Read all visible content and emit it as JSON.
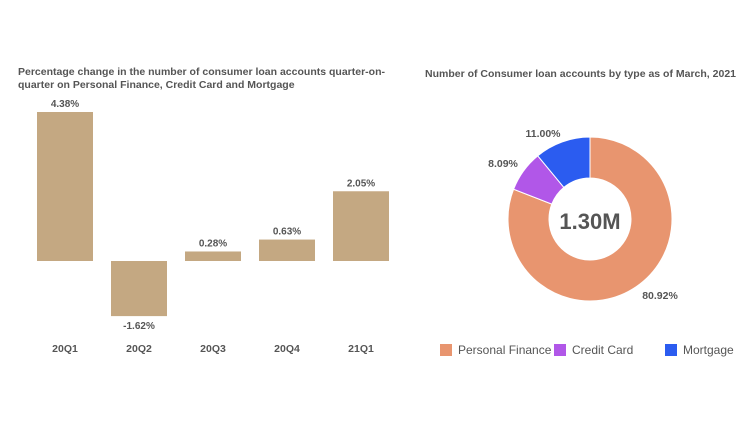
{
  "colors": {
    "bar": "#c4a882",
    "personal_finance": "#e8956f",
    "credit_card": "#b157e8",
    "mortgage": "#2b5cf0",
    "text": "#555555"
  },
  "left": {
    "title": "Percentage change in the number of consumer loan accounts quarter-on-quarter on Personal Finance, Credit Card and Mortgage"
  },
  "right": {
    "title": "Number of Consumer loan accounts by type as of March, 2021",
    "center_label": "1.30M"
  },
  "legend": [
    {
      "label": "Personal Finance",
      "color": "#e8956f"
    },
    {
      "label": "Credit Card",
      "color": "#b157e8"
    },
    {
      "label": "Mortgage",
      "color": "#2b5cf0"
    }
  ],
  "chart_data": [
    {
      "type": "bar",
      "title": "Percentage change in the number of consumer loan accounts quarter-on-quarter on Personal Finance, Credit Card and Mortgage",
      "categories": [
        "20Q1",
        "20Q2",
        "20Q3",
        "20Q4",
        "21Q1"
      ],
      "values": [
        4.38,
        -1.62,
        0.28,
        0.63,
        2.05
      ],
      "value_labels": [
        "4.38%",
        "-1.62%",
        "0.28%",
        "0.63%",
        "2.05%"
      ],
      "unit": "%",
      "ylim": [
        -1.62,
        4.38
      ],
      "grid": false
    },
    {
      "type": "pie",
      "subtype": "donut",
      "title": "Number of Consumer loan accounts by type as of March, 2021",
      "center_label": "1.30M",
      "slices": [
        {
          "name": "Personal Finance",
          "value": 80.92,
          "label": "80.92%"
        },
        {
          "name": "Credit Card",
          "value": 8.09,
          "label": "8.09%"
        },
        {
          "name": "Mortgage",
          "value": 11.0,
          "label": "11.00%"
        }
      ],
      "legend_position": "bottom"
    }
  ]
}
